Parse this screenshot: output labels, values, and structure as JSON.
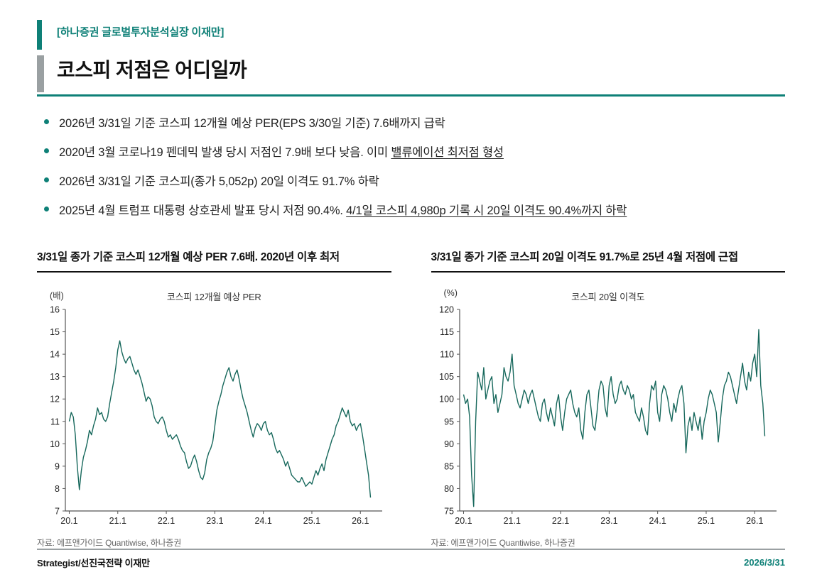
{
  "colors": {
    "accent": "#0E8077",
    "line": "#17685C",
    "axis": "#555555",
    "gray_bar": "#9aa0a2"
  },
  "header": {
    "dept_line": "[하나증권 글로벌투자분석실장 이재만]",
    "title": "코스피 저점은 어디일까"
  },
  "bullets": [
    {
      "pre": "2026년 3/31일 기준 코스피 12개월 예상 PER(EPS 3/30일 기준) 7.6배까지 급락",
      "underline": ""
    },
    {
      "pre": "2020년 3월 코로나19 펜데믹 발생 당시 저점인 7.9배 보다 낮음. 이미 ",
      "underline": "밸류에이션 최저점 형성"
    },
    {
      "pre": "2026년 3/31일 기준 코스피(종가 5,052p) 20일 이격도 91.7% 하락",
      "underline": ""
    },
    {
      "pre": "2025년 4월 트럼프 대통령 상호관세 발표 당시 저점 90.4%. ",
      "underline": "4/1일 코스피 4,980p 기록 시 20일 이격도 90.4%까지 하락"
    }
  ],
  "sections": [
    {
      "heading": "3/31일 종가 기준 코스피 12개월 예상 PER 7.6배. 2020년 이후 최저"
    },
    {
      "heading": "3/31일 종가 기준 코스피 20일 이격도 91.7%로 25년 4월 저점에 근접"
    }
  ],
  "chart_data": [
    {
      "type": "line",
      "title": "코스피 12개월 예상 PER",
      "unit": "(배)",
      "source": "자료: 에프앤가이드 Quantiwise, 하나증권",
      "ylim": [
        7,
        16
      ],
      "y_tick_step": 1,
      "xlim": [
        2019.92,
        2026.45
      ],
      "x_tick_values": [
        2020,
        2021,
        2022,
        2023,
        2024,
        2025,
        2026
      ],
      "x_tick_labels": [
        "20.1",
        "21.1",
        "22.1",
        "23.1",
        "24.1",
        "25.1",
        "26.1"
      ],
      "x_start": 2020.0,
      "x_step": 0.041667,
      "values": [
        11.0,
        11.4,
        11.2,
        10.4,
        9.0,
        7.95,
        8.8,
        9.4,
        9.7,
        10.1,
        10.6,
        10.4,
        10.8,
        11.1,
        11.6,
        11.3,
        11.4,
        11.1,
        11.0,
        11.2,
        11.8,
        12.3,
        12.8,
        13.4,
        14.2,
        14.6,
        14.1,
        13.8,
        13.6,
        13.8,
        13.9,
        13.6,
        13.3,
        13.1,
        13.3,
        13.0,
        12.7,
        12.3,
        11.9,
        12.1,
        12.0,
        11.7,
        11.2,
        11.0,
        10.9,
        11.1,
        11.2,
        11.0,
        10.6,
        10.3,
        10.4,
        10.2,
        10.3,
        10.4,
        10.2,
        9.9,
        9.7,
        9.6,
        9.2,
        8.9,
        9.0,
        9.3,
        9.5,
        9.2,
        8.8,
        8.5,
        8.4,
        8.7,
        9.3,
        9.6,
        9.8,
        10.1,
        10.8,
        11.5,
        11.9,
        12.2,
        12.6,
        12.9,
        13.2,
        13.4,
        13.0,
        12.8,
        13.1,
        13.3,
        12.9,
        12.4,
        12.0,
        11.7,
        11.4,
        11.0,
        10.6,
        10.3,
        10.7,
        10.9,
        10.8,
        10.6,
        10.9,
        11.0,
        10.6,
        10.4,
        10.5,
        10.2,
        9.8,
        9.6,
        9.7,
        9.5,
        9.3,
        9.0,
        9.2,
        8.9,
        8.6,
        8.5,
        8.4,
        8.3,
        8.3,
        8.5,
        8.3,
        8.1,
        8.2,
        8.3,
        8.2,
        8.5,
        8.8,
        8.6,
        8.9,
        9.1,
        8.8,
        9.3,
        9.6,
        9.9,
        10.2,
        10.4,
        10.8,
        11.0,
        11.3,
        11.6,
        11.4,
        11.2,
        11.5,
        11.0,
        10.8,
        10.9,
        10.6,
        10.8,
        10.9,
        10.4,
        9.8,
        9.2,
        8.6,
        7.6
      ]
    },
    {
      "type": "line",
      "title": "코스피 20일 이격도",
      "unit": "(%)",
      "source": "자료: 에프앤가이드 Quantiwise, 하나증권",
      "ylim": [
        75,
        120
      ],
      "y_tick_step": 5,
      "xlim": [
        2019.92,
        2026.45
      ],
      "x_tick_values": [
        2020,
        2021,
        2022,
        2023,
        2024,
        2025,
        2026
      ],
      "x_tick_labels": [
        "20.1",
        "21.1",
        "22.1",
        "23.1",
        "24.1",
        "25.1",
        "26.1"
      ],
      "x_start": 2020.0,
      "x_step": 0.041667,
      "values": [
        101,
        99,
        100,
        96,
        83,
        76,
        95,
        106,
        104,
        102,
        107,
        100,
        102,
        104,
        105,
        99,
        101,
        97,
        99,
        101,
        107,
        105,
        104,
        106,
        110,
        103,
        101,
        99,
        98,
        100,
        102,
        101,
        99,
        101,
        102,
        100,
        98,
        96,
        95,
        99,
        100,
        97,
        95,
        98,
        96,
        94,
        99,
        101,
        96,
        93,
        97,
        100,
        101,
        102,
        99,
        97,
        96,
        98,
        93,
        91,
        97,
        101,
        102,
        98,
        94,
        93,
        97,
        102,
        104,
        103,
        98,
        96,
        103,
        105,
        101,
        99,
        100,
        103,
        104,
        102,
        101,
        103,
        102,
        100,
        101,
        97,
        96,
        95,
        98,
        96,
        93,
        92,
        99,
        103,
        102,
        104,
        97,
        95,
        101,
        103,
        102,
        100,
        97,
        95,
        99,
        97,
        100,
        102,
        103,
        99,
        88,
        94,
        96,
        93,
        97,
        95,
        93,
        96,
        91,
        95,
        97,
        100,
        102,
        101,
        99,
        97,
        90.4,
        95,
        100,
        103,
        104,
        106,
        105,
        103,
        101,
        99,
        102,
        105,
        108,
        104,
        102,
        106,
        104,
        108,
        110,
        105,
        115.5,
        103,
        99,
        91.7
      ]
    }
  ],
  "footer": {
    "left": "Strategist/선진국전략 이재만",
    "right": "2026/3/31"
  }
}
